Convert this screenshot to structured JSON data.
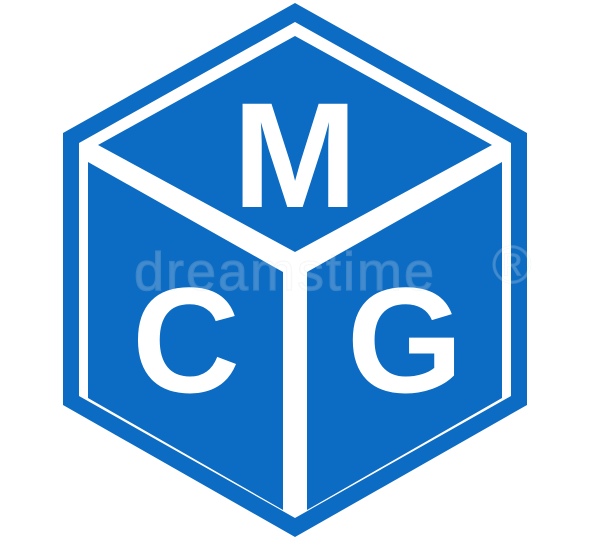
{
  "logo": {
    "letters": {
      "top": "M",
      "left": "C",
      "right": "G"
    },
    "colors": {
      "primary": "#0c6bc2",
      "background": "#ffffff",
      "letter": "#ffffff"
    }
  },
  "watermark": {
    "text": "dreamstime",
    "mark": "®"
  }
}
